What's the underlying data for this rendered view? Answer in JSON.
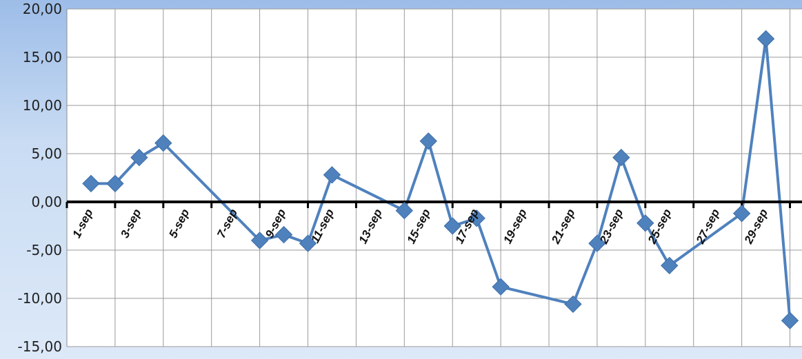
{
  "chart_data": {
    "type": "line",
    "title": "",
    "xlabel": "",
    "ylabel": "",
    "ylim": [
      -15,
      20
    ],
    "y_ticks": [
      "20,00",
      "15,00",
      "10,00",
      "5,00",
      "0,00",
      "-5,00",
      "-10,00",
      "-15,00"
    ],
    "y_tick_values": [
      20,
      15,
      10,
      5,
      0,
      -5,
      -10,
      -15
    ],
    "x_range": [
      0,
      30.5
    ],
    "x_ticks": [
      "1-sep",
      "3-sep",
      "5-sep",
      "7-sep",
      "9-sep",
      "11-sep",
      "13-sep",
      "15-sep",
      "17-sep",
      "19-sep",
      "21-sep",
      "23-sep",
      "25-sep",
      "27-sep",
      "29-sep"
    ],
    "x_tick_values": [
      1,
      3,
      5,
      7,
      9,
      11,
      13,
      15,
      17,
      19,
      21,
      23,
      25,
      27,
      29
    ],
    "grid": true,
    "series": [
      {
        "color": "#4f81bd",
        "marker": "diamond",
        "x": [
          1,
          2,
          3,
          4,
          8,
          9,
          10,
          11,
          14,
          15,
          16,
          17,
          18,
          21,
          22,
          23,
          24,
          25,
          28,
          29,
          30
        ],
        "values": [
          1.9,
          1.9,
          4.6,
          6.1,
          -4.0,
          -3.4,
          -4.3,
          2.8,
          -0.9,
          6.3,
          -2.5,
          -1.7,
          -8.8,
          -10.6,
          -4.3,
          4.6,
          -2.2,
          -6.6,
          -1.2,
          16.9,
          -12.3
        ]
      }
    ]
  }
}
